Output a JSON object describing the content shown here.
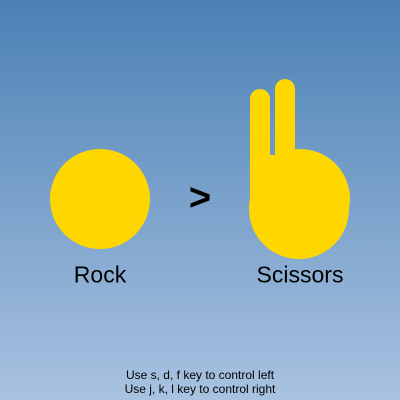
{
  "game": {
    "left_player": {
      "choice": "Rock",
      "hand": "rock"
    },
    "right_player": {
      "choice": "Scissors",
      "hand": "scissors"
    },
    "comparison": ">",
    "colors": {
      "hand": "#ffd700",
      "background_top": "#4b81b5",
      "background_bottom": "#a9c2e1"
    }
  },
  "instructions": {
    "left": "Use s, d, f key to control left",
    "right": "Use j, k, l key to control right"
  }
}
